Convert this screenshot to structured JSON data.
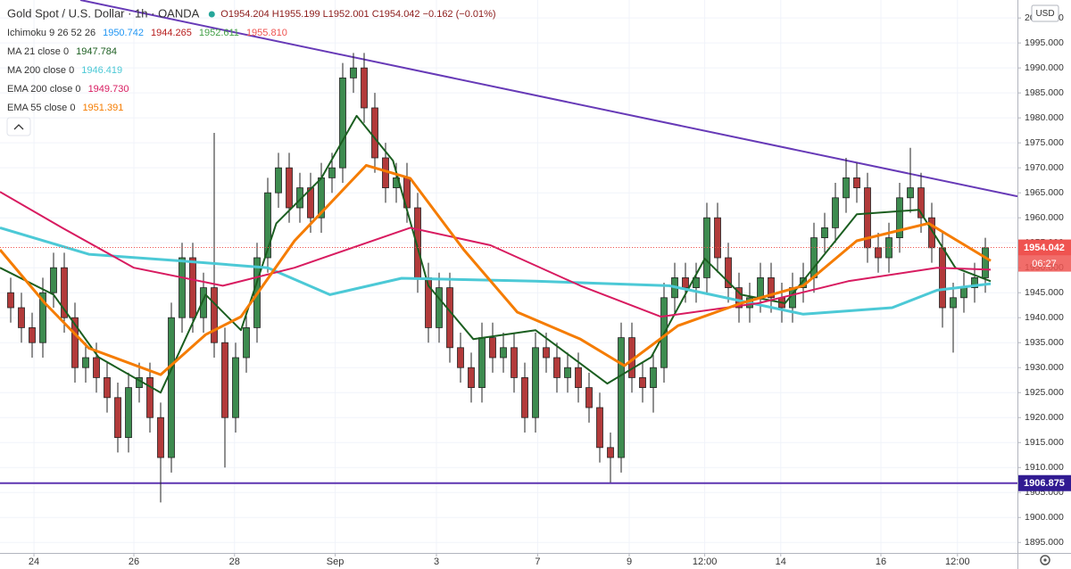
{
  "chart_data": {
    "type": "candlestick",
    "title": "Gold Spot / U.S. Dollar · 1h · OANDA",
    "ohlc": "O1954.204  H1955.199  L1952.001  C1954.042  −0.162 (−0.01%)",
    "currency": "USD",
    "ichimoku": {
      "name": "Ichimoku 9 26 52 26",
      "values": [
        "1950.742",
        "1944.265",
        "1952.611",
        "1955.810"
      ],
      "colors": [
        "#2196f3",
        "#b71c1c",
        "#43a047",
        "#ef5350"
      ]
    },
    "x": [
      0,
      1,
      2,
      3,
      4,
      5,
      6,
      7,
      8,
      9,
      10,
      11,
      12,
      13,
      14,
      15,
      16,
      17,
      18,
      19,
      20,
      21,
      22,
      23,
      24,
      25,
      26,
      27,
      28,
      29,
      30,
      31,
      32,
      33,
      34,
      35,
      36,
      37,
      38,
      39,
      40,
      41,
      42,
      43,
      44,
      45,
      46,
      47,
      48,
      49,
      50,
      51,
      52,
      53,
      54,
      55,
      56,
      57,
      58,
      59,
      60,
      61,
      62,
      63,
      64,
      65,
      66,
      67,
      68,
      69,
      70,
      71,
      72,
      73,
      74,
      75,
      76,
      77,
      78,
      79,
      80,
      81,
      82,
      83,
      84,
      85,
      86,
      87,
      88,
      89,
      90,
      91
    ],
    "open": [
      1945,
      1942,
      1938,
      1935,
      1945,
      1950,
      1940,
      1930,
      1932,
      1928,
      1924,
      1916,
      1926,
      1928,
      1920,
      1912,
      1940,
      1952,
      1940,
      1946,
      1935,
      1920,
      1932,
      1938,
      1952,
      1965,
      1970,
      1962,
      1966,
      1960,
      1968,
      1970,
      1988,
      1990,
      1982,
      1972,
      1966,
      1968,
      1962,
      1948,
      1938,
      1946,
      1934,
      1930,
      1926,
      1936,
      1932,
      1934,
      1928,
      1920,
      1934,
      1932,
      1928,
      1930,
      1926,
      1922,
      1914,
      1912,
      1936,
      1928,
      1926,
      1930,
      1944,
      1948,
      1946,
      1948,
      1960,
      1952,
      1946,
      1942,
      1944,
      1948,
      1944,
      1942,
      1946,
      1948,
      1956,
      1958,
      1964,
      1968,
      1966,
      1954,
      1952,
      1956,
      1964,
      1966,
      1960,
      1954,
      1942,
      1944,
      1946,
      1948
    ],
    "high": [
      1948,
      1945,
      1941,
      1948,
      1953,
      1953,
      1943,
      1935,
      1935,
      1931,
      1927,
      1929,
      1931,
      1931,
      1923,
      1943,
      1955,
      1955,
      1949,
      1977,
      1938,
      1935,
      1941,
      1955,
      1968,
      1973,
      1973,
      1969,
      1969,
      1971,
      1973,
      1991,
      1993,
      1993,
      1985,
      1975,
      1971,
      1971,
      1965,
      1951,
      1949,
      1949,
      1937,
      1933,
      1939,
      1939,
      1937,
      1937,
      1931,
      1937,
      1937,
      1935,
      1933,
      1933,
      1929,
      1925,
      1917,
      1939,
      1939,
      1931,
      1933,
      1947,
      1951,
      1951,
      1951,
      1963,
      1963,
      1955,
      1949,
      1947,
      1951,
      1951,
      1947,
      1949,
      1951,
      1959,
      1961,
      1967,
      1972,
      1971,
      1969,
      1957,
      1959,
      1967,
      1974,
      1969,
      1963,
      1957,
      1947,
      1949,
      1951,
      1956
    ],
    "low": [
      1939,
      1935,
      1932,
      1932,
      1942,
      1937,
      1927,
      1927,
      1925,
      1921,
      1913,
      1913,
      1923,
      1917,
      1903,
      1909,
      1937,
      1937,
      1937,
      1932,
      1910,
      1917,
      1929,
      1935,
      1949,
      1962,
      1959,
      1959,
      1957,
      1957,
      1965,
      1967,
      1985,
      1979,
      1969,
      1963,
      1963,
      1959,
      1945,
      1935,
      1935,
      1931,
      1927,
      1923,
      1923,
      1929,
      1929,
      1925,
      1917,
      1917,
      1929,
      1925,
      1925,
      1923,
      1919,
      1911,
      1907,
      1909,
      1925,
      1923,
      1921,
      1927,
      1941,
      1943,
      1943,
      1945,
      1949,
      1943,
      1939,
      1939,
      1941,
      1941,
      1939,
      1939,
      1943,
      1945,
      1953,
      1955,
      1961,
      1963,
      1951,
      1949,
      1949,
      1953,
      1961,
      1957,
      1951,
      1938,
      1933,
      1941,
      1943,
      1945
    ],
    "close": [
      1942,
      1938,
      1935,
      1945,
      1950,
      1940,
      1930,
      1932,
      1928,
      1924,
      1916,
      1926,
      1928,
      1920,
      1912,
      1940,
      1952,
      1940,
      1946,
      1935,
      1920,
      1932,
      1938,
      1952,
      1965,
      1970,
      1962,
      1966,
      1960,
      1968,
      1970,
      1988,
      1990,
      1982,
      1972,
      1966,
      1968,
      1962,
      1948,
      1938,
      1946,
      1934,
      1930,
      1926,
      1936,
      1932,
      1934,
      1928,
      1920,
      1934,
      1932,
      1928,
      1930,
      1926,
      1922,
      1914,
      1912,
      1936,
      1928,
      1926,
      1930,
      1944,
      1948,
      1946,
      1948,
      1960,
      1952,
      1946,
      1942,
      1944,
      1948,
      1944,
      1942,
      1946,
      1948,
      1956,
      1958,
      1964,
      1968,
      1966,
      1954,
      1952,
      1956,
      1964,
      1966,
      1960,
      1954,
      1942,
      1944,
      1946,
      1948,
      1954
    ],
    "up_color": "#3d8b4f",
    "down_color": "#b23a3a",
    "series": [
      {
        "name": "MA 21 close 0",
        "last_label": "1947.784",
        "color": "#1b5e20",
        "width": 2,
        "x": [
          -1,
          4,
          8.2,
          14,
          18.2,
          21.5,
          24.8,
          29,
          32.3,
          35.7,
          39,
          43.2,
          49,
          55.7,
          59.8,
          64.8,
          68.2,
          72.3,
          79,
          84.8,
          88.2,
          91.5
        ],
        "values": [
          1950,
          1944.6,
          1932.1,
          1925,
          1944.6,
          1937.5,
          1958.9,
          1967.9,
          1980.4,
          1971.4,
          1946.4,
          1935.7,
          1937.5,
          1926.8,
          1932.1,
          1951.8,
          1944.6,
          1942.9,
          1960.7,
          1961.6,
          1950,
          1947.3
        ]
      },
      {
        "name": "MA 200 close 0",
        "last_label": "1946.419",
        "color": "#4cc9d6",
        "width": 3,
        "x": [
          -1,
          7.3,
          15.7,
          24,
          29.8,
          36.5,
          49,
          61.5,
          74,
          82.3,
          86.5,
          91.5
        ],
        "values": [
          1958,
          1952.7,
          1951.4,
          1950,
          1944.6,
          1947.9,
          1947.3,
          1946.4,
          1940.7,
          1942,
          1945.5,
          1946.8
        ]
      },
      {
        "name": "EMA 200 close 0",
        "last_label": "1949.730",
        "color": "#d81b60",
        "width": 2,
        "x": [
          -1,
          4.8,
          11.5,
          19.8,
          26.5,
          37.3,
          44.8,
          53.2,
          60.7,
          69.8,
          78.2,
          86.5,
          91.5
        ],
        "values": [
          1965.2,
          1958,
          1950,
          1946.4,
          1950,
          1958,
          1954.5,
          1946.4,
          1940.2,
          1942.9,
          1947.3,
          1950,
          1949.6
        ]
      },
      {
        "name": "EMA 55 close 0",
        "last_label": "1951.391",
        "color": "#f57c00",
        "width": 3,
        "x": [
          -1,
          3.2,
          7.3,
          14,
          18.2,
          21.5,
          26.5,
          33.2,
          37.3,
          42.3,
          47.3,
          53.2,
          57.3,
          62.3,
          68.2,
          74,
          79,
          85.7,
          91.5
        ],
        "values": [
          1953.6,
          1942.9,
          1933.9,
          1928.6,
          1936.6,
          1940.2,
          1955.4,
          1970.5,
          1967.9,
          1953.6,
          1941.1,
          1935.7,
          1930.4,
          1938.4,
          1942.9,
          1946.4,
          1955.4,
          1958.9,
          1951.4
        ]
      }
    ],
    "trendline": {
      "x": [
        6.5,
        94
      ],
      "values": [
        2003.6,
        1964.3
      ],
      "color": "#673ab7"
    },
    "support": {
      "value": 1906.875,
      "label": "1906.875",
      "color": "#5e35b1"
    },
    "last_price": {
      "value": 1954.042,
      "label": "1954.042",
      "countdown": "06:27",
      "color": "#ef5350"
    },
    "xlim": [
      -1,
      94
    ],
    "ylim": [
      1892.9,
      2003.6
    ],
    "xticks": [
      {
        "value": 2.17,
        "label": "24"
      },
      {
        "value": 11.5,
        "label": "26"
      },
      {
        "value": 20.9,
        "label": "28"
      },
      {
        "value": 30.3,
        "label": "Sep"
      },
      {
        "value": 39.75,
        "label": "3"
      },
      {
        "value": 49.2,
        "label": "7"
      },
      {
        "value": 57.75,
        "label": "9"
      },
      {
        "value": 64.8,
        "label": "12:00"
      },
      {
        "value": 71.9,
        "label": "14"
      },
      {
        "value": 81.25,
        "label": "16"
      },
      {
        "value": 88.4,
        "label": "12:00"
      }
    ],
    "yticks": [
      {
        "value": 1895,
        "label": "1895.000"
      },
      {
        "value": 1900,
        "label": "1900.000"
      },
      {
        "value": 1905,
        "label": "1905.000"
      },
      {
        "value": 1910,
        "label": "1910.000"
      },
      {
        "value": 1915,
        "label": "1915.000"
      },
      {
        "value": 1920,
        "label": "1920.000"
      },
      {
        "value": 1925,
        "label": "1925.000"
      },
      {
        "value": 1930,
        "label": "1930.000"
      },
      {
        "value": 1935,
        "label": "1935.000"
      },
      {
        "value": 1940,
        "label": "1940.000"
      },
      {
        "value": 1945,
        "label": "1945.000"
      },
      {
        "value": 1950,
        "label": "1950.000"
      },
      {
        "value": 1955,
        "label": "1955.000"
      },
      {
        "value": 1960,
        "label": "1960.000"
      },
      {
        "value": 1965,
        "label": "1965.000"
      },
      {
        "value": 1970,
        "label": "1970.000"
      },
      {
        "value": 1975,
        "label": "1975.000"
      },
      {
        "value": 1980,
        "label": "1980.000"
      },
      {
        "value": 1985,
        "label": "1985.000"
      },
      {
        "value": 1990,
        "label": "1990.000"
      },
      {
        "value": 1995,
        "label": "1995.000"
      },
      {
        "value": 2000,
        "label": "2000.000"
      }
    ],
    "grid": true
  }
}
